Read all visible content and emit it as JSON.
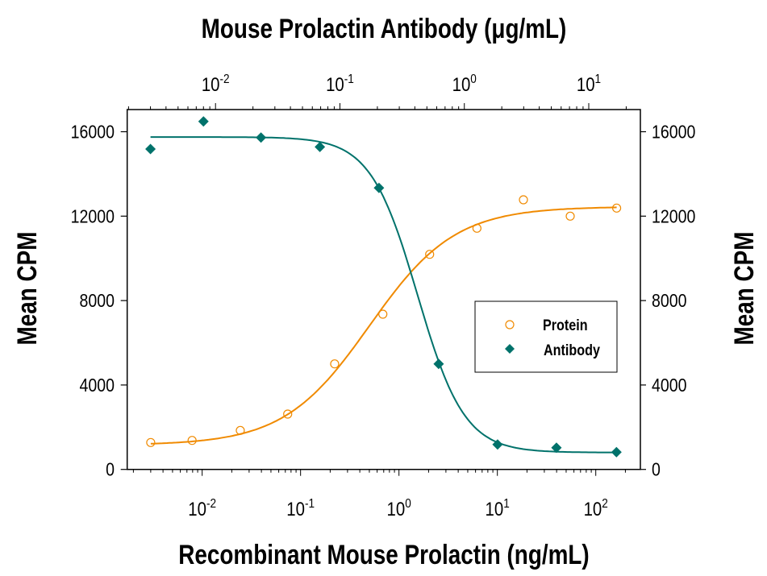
{
  "chart_data": {
    "type": "scatter",
    "title": "",
    "top_axis_label": "Mouse Prolactin Antibody (μg/mL)",
    "xlabel": "Recombinant Mouse Prolactin (ng/mL)",
    "ylabel": "Mean CPM",
    "y2label": "Mean CPM",
    "x_scale": "log",
    "xlim": [
      0.00173,
      284
    ],
    "top_xlim": [
      0.00195,
      26
    ],
    "ylim": [
      0,
      17050
    ],
    "x_ticks": [
      {
        "base": "10",
        "exp": "-2",
        "value": 0.01
      },
      {
        "base": "10",
        "exp": "-1",
        "value": 0.1
      },
      {
        "base": "10",
        "exp": "0",
        "value": 1
      },
      {
        "base": "10",
        "exp": "1",
        "value": 10
      },
      {
        "base": "10",
        "exp": "2",
        "value": 100
      }
    ],
    "top_x_ticks": [
      {
        "base": "10",
        "exp": "-2",
        "value": 0.01
      },
      {
        "base": "10",
        "exp": "-1",
        "value": 0.1
      },
      {
        "base": "10",
        "exp": "0",
        "value": 1
      },
      {
        "base": "10",
        "exp": "1",
        "value": 10
      }
    ],
    "y_ticks": [
      "0",
      "4000",
      "8000",
      "12000",
      "16000"
    ],
    "grid": false,
    "legend_position": "center-right",
    "series": [
      {
        "name": "Protein",
        "axis": "bottom",
        "marker": "open-circle",
        "color": "#F08A00",
        "x": [
          0.003,
          0.0079,
          0.0244,
          0.074,
          0.222,
          0.686,
          2.05,
          6.2,
          18.4,
          55,
          163
        ],
        "y": [
          1275,
          1374,
          1847,
          2622,
          5000,
          7355,
          10191,
          11427,
          12775,
          12000,
          12382
        ],
        "fit": {
          "bottom": 1150,
          "top": 12450,
          "ec50": 0.5,
          "hill": 1.0,
          "range": [
            0.003,
            163
          ]
        }
      },
      {
        "name": "Antibody",
        "axis": "top",
        "marker": "filled-diamond",
        "color": "#00726B",
        "x": [
          0.003,
          0.008,
          0.0232,
          0.069,
          0.206,
          0.622,
          1.85,
          5.5,
          16.7
        ],
        "y": [
          15180,
          16489,
          15725,
          15282,
          13336,
          5000,
          1183,
          1031,
          817
        ],
        "fit": {
          "bottom": 800,
          "top": 15750,
          "ec50": 0.42,
          "hill": 2.3,
          "range": [
            0.003,
            16.7
          ]
        }
      }
    ]
  }
}
